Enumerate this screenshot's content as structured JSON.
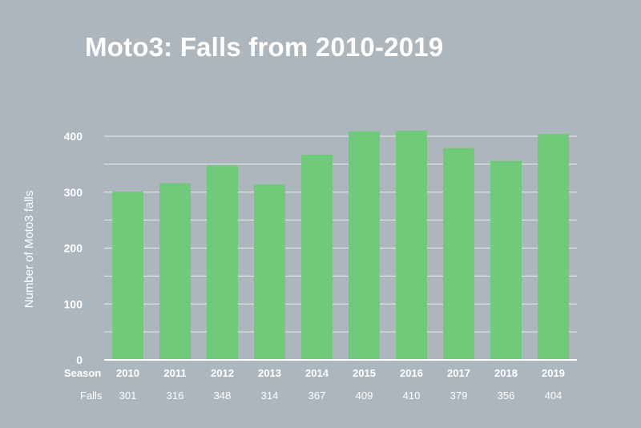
{
  "chart_data": {
    "type": "bar",
    "title": "Moto3: Falls from 2010-2019",
    "ylabel": "Number of Moto3 falls",
    "ylim": [
      0,
      400
    ],
    "yticks": [
      0,
      100,
      200,
      300,
      400
    ],
    "grid": true,
    "color": "#6fcb7a",
    "row_labels": {
      "season": "Season",
      "falls": "Falls"
    },
    "categories": [
      "2010",
      "2011",
      "2012",
      "2013",
      "2014",
      "2015",
      "2016",
      "2017",
      "2018",
      "2019"
    ],
    "values": [
      301,
      316,
      348,
      314,
      367,
      409,
      410,
      379,
      356,
      404
    ]
  }
}
